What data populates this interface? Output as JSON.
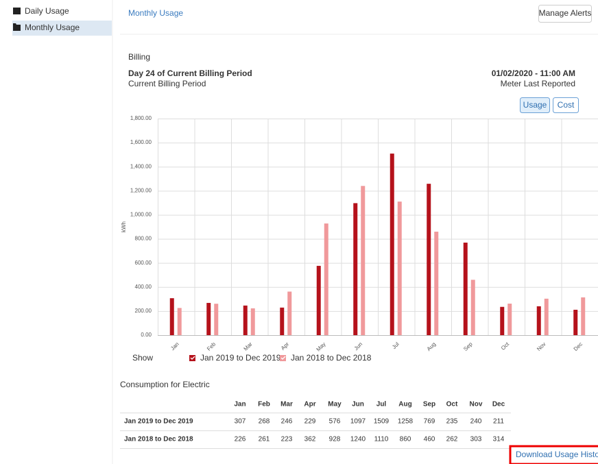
{
  "sidebar": {
    "items": [
      "Daily Usage",
      "Monthly Usage"
    ]
  },
  "header": {
    "title": "Monthly Usage",
    "button": "Manage Alerts"
  },
  "billing": {
    "title": "Billing",
    "period_day": "Day 24 of Current Billing Period",
    "period_label": "Current Billing Period",
    "reported_at": "01/02/2020 - 11:00 AM",
    "reported_label": "Meter Last Reported",
    "toggle": [
      "Usage",
      "Cost"
    ]
  },
  "chart_data": {
    "type": "bar",
    "categories": [
      "Jan",
      "Feb",
      "Mar",
      "Apr",
      "May",
      "Jun",
      "Jul",
      "Aug",
      "Sep",
      "Oct",
      "Nov",
      "Dec"
    ],
    "series": [
      {
        "name": "Jan 2019 to Dec 2019",
        "color": "#b5121b",
        "values": [
          307,
          268,
          246,
          229,
          576,
          1097,
          1509,
          1258,
          769,
          235,
          240,
          211
        ]
      },
      {
        "name": "Jan 2018 to Dec 2018",
        "color": "#f0999b",
        "values": [
          226,
          261,
          223,
          362,
          928,
          1240,
          1110,
          860,
          460,
          262,
          303,
          314
        ]
      }
    ],
    "y_label": "kWh",
    "legend_label": "Show",
    "ylim": [
      0,
      1800
    ],
    "yticks": [
      {
        "value": 0,
        "label": "0.00"
      },
      {
        "value": 200,
        "label": "200.00"
      },
      {
        "value": 400,
        "label": "400.00"
      },
      {
        "value": 600,
        "label": "600.00"
      },
      {
        "value": 800,
        "label": "800.00"
      },
      {
        "value": 1000,
        "label": "1,000.00"
      },
      {
        "value": 1200,
        "label": "1,200.00"
      },
      {
        "value": 1400,
        "label": "1,400.00"
      },
      {
        "value": 1600,
        "label": "1,600.00"
      },
      {
        "value": 1800,
        "label": "1,800.00"
      }
    ],
    "grid": true
  },
  "table": {
    "title": "Consumption for Electric"
  },
  "download": "Download Usage History"
}
